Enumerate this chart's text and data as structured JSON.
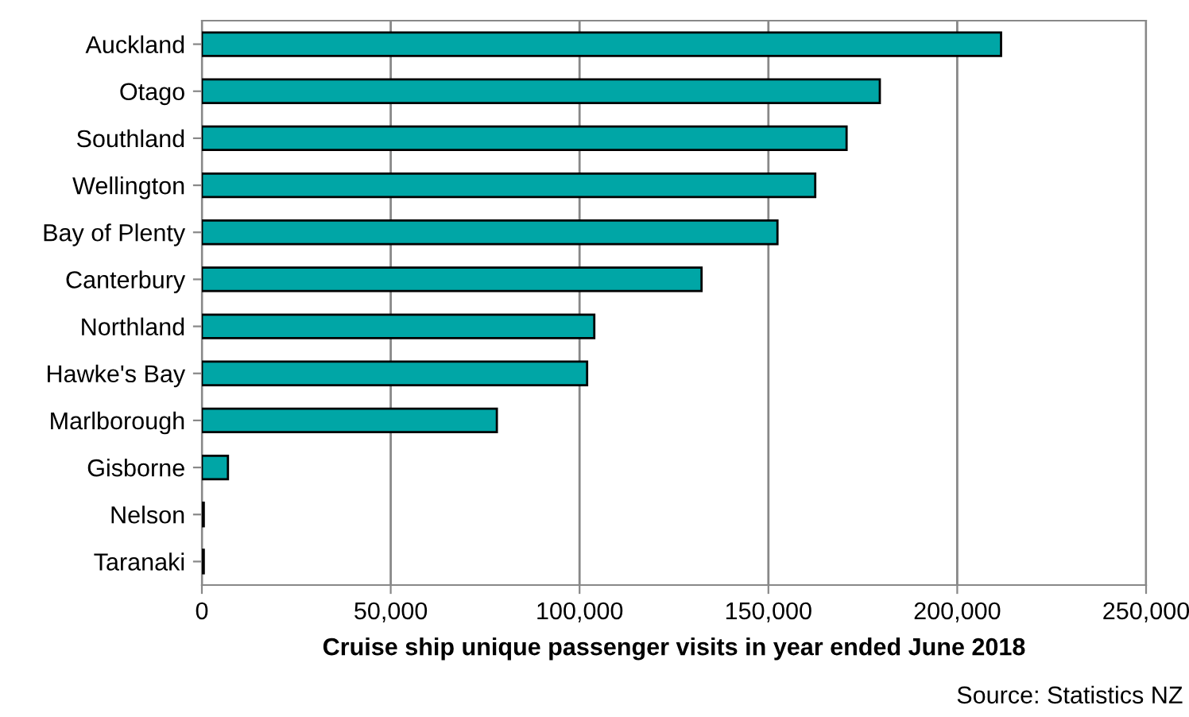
{
  "chart_data": {
    "type": "bar",
    "orientation": "horizontal",
    "categories": [
      "Auckland",
      "Otago",
      "Southland",
      "Wellington",
      "Bay of Plenty",
      "Canterbury",
      "Northland",
      "Hawke's Bay",
      "Marlborough",
      "Gisborne",
      "Nelson",
      "Taranaki"
    ],
    "values": [
      211600,
      179500,
      170700,
      162400,
      152400,
      132300,
      103900,
      102000,
      78100,
      6900,
      500,
      500
    ],
    "color": "#00a6a6",
    "xlim": [
      0,
      250000
    ],
    "xticks": [
      {
        "value": 0,
        "label": "0"
      },
      {
        "value": 50000,
        "label": "50,000"
      },
      {
        "value": 100000,
        "label": "100,000"
      },
      {
        "value": 150000,
        "label": "150,000"
      },
      {
        "value": 200000,
        "label": "200,000"
      },
      {
        "value": 250000,
        "label": "250,000"
      }
    ],
    "xlabel": "Cruise ship unique passenger visits in year ended June 2018",
    "annotations": [
      "Source: Statistics NZ"
    ],
    "grid": "x"
  }
}
